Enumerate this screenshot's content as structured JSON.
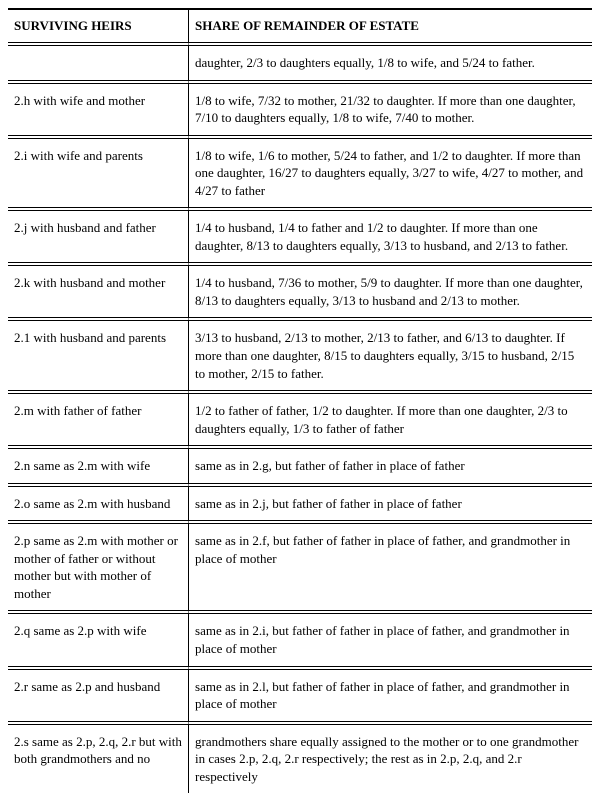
{
  "table": {
    "columns": [
      "SURVIVING HEIRS",
      "SHARE OF REMAINDER OF ESTATE"
    ],
    "rows": [
      [
        "",
        "daughter, 2/3 to daughters equally, 1/8 to wife, and 5/24 to father."
      ],
      [
        "2.h with wife and mother",
        "1/8 to wife, 7/32 to mother, 21/32 to daughter. If more than one daughter, 7/10 to daughters equally, 1/8 to wife, 7/40 to mother."
      ],
      [
        "2.i with wife and parents",
        "1/8 to wife, 1/6 to mother, 5/24 to father, and 1/2 to daughter. If more than one daughter, 16/27 to daughters equally, 3/27 to wife, 4/27 to mother, and 4/27 to father"
      ],
      [
        "2.j with husband and father",
        "1/4 to husband, 1/4 to father and 1/2 to daughter. If more than one daughter, 8/13 to daughters equally, 3/13 to husband, and 2/13 to father."
      ],
      [
        "2.k with husband and mother",
        "1/4 to husband, 7/36 to mother, 5/9 to daughter. If more than one daughter, 8/13 to daughters equally, 3/13 to husband and 2/13 to mother."
      ],
      [
        "2.1 with husband and parents",
        "3/13 to husband, 2/13 to mother, 2/13 to father, and 6/13 to daughter. If more than one daughter, 8/15 to daughters equally, 3/15 to husband, 2/15 to mother, 2/15 to father."
      ],
      [
        "2.m with father of father",
        "1/2 to father of father, 1/2 to daughter. If more than one daughter, 2/3 to daughters equally, 1/3 to father of father"
      ],
      [
        "2.n same as 2.m with wife",
        "same as in 2.g, but father of father in place of father"
      ],
      [
        "2.o same as 2.m with husband",
        "same as in 2.j, but father of father in place of father"
      ],
      [
        "2.p same as 2.m with mother or mother of father or without mother but with mother of mother",
        "same as in 2.f, but father of father in place of father, and grandmother in place of mother"
      ],
      [
        "2.q same as 2.p with wife",
        "same as in 2.i, but father of father in place of father, and grandmother in place of mother"
      ],
      [
        "2.r same as 2.p and husband",
        "same as in 2.l, but father of father in place of father, and grandmother in place of mother"
      ],
      [
        "2.s same as 2.p, 2.q, 2.r but with both grandmothers and no",
        "grandmothers share equally assigned to the mother or to one grandmother in cases 2.p, 2.q, 2.r respectively; the rest as in 2.p, 2.q, and 2.r respectively"
      ]
    ]
  }
}
